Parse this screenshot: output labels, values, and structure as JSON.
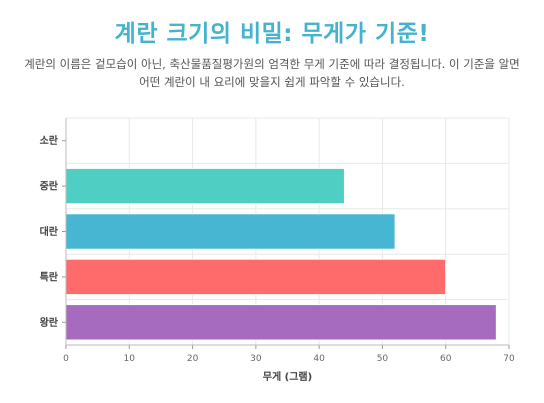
{
  "page": {
    "title": "계란 크기의 비밀: 무게가 기준!",
    "subtitle": "계란의 이름은 겉모습이 아닌, 축산물품질평가원의 엄격한 무게 기준에 따라 결정됩니다. 이 기준을 알면 어떤 계란이 내 요리에 맞을지 쉽게 파악할 수 있습니다."
  },
  "chart_data": {
    "type": "bar",
    "orientation": "horizontal",
    "categories": [
      "소란",
      "중란",
      "대란",
      "특란",
      "왕란"
    ],
    "values": [
      0,
      44,
      52,
      60,
      68
    ],
    "colors": [
      "#ffffff",
      "#4fcfc3",
      "#46b6d2",
      "#ff6b6b",
      "#a66bbe"
    ],
    "xlabel": "무게 (그램)",
    "xlim": [
      0,
      70
    ],
    "xticks": [
      0,
      10,
      20,
      30,
      40,
      50,
      60,
      70
    ],
    "grid": true
  }
}
